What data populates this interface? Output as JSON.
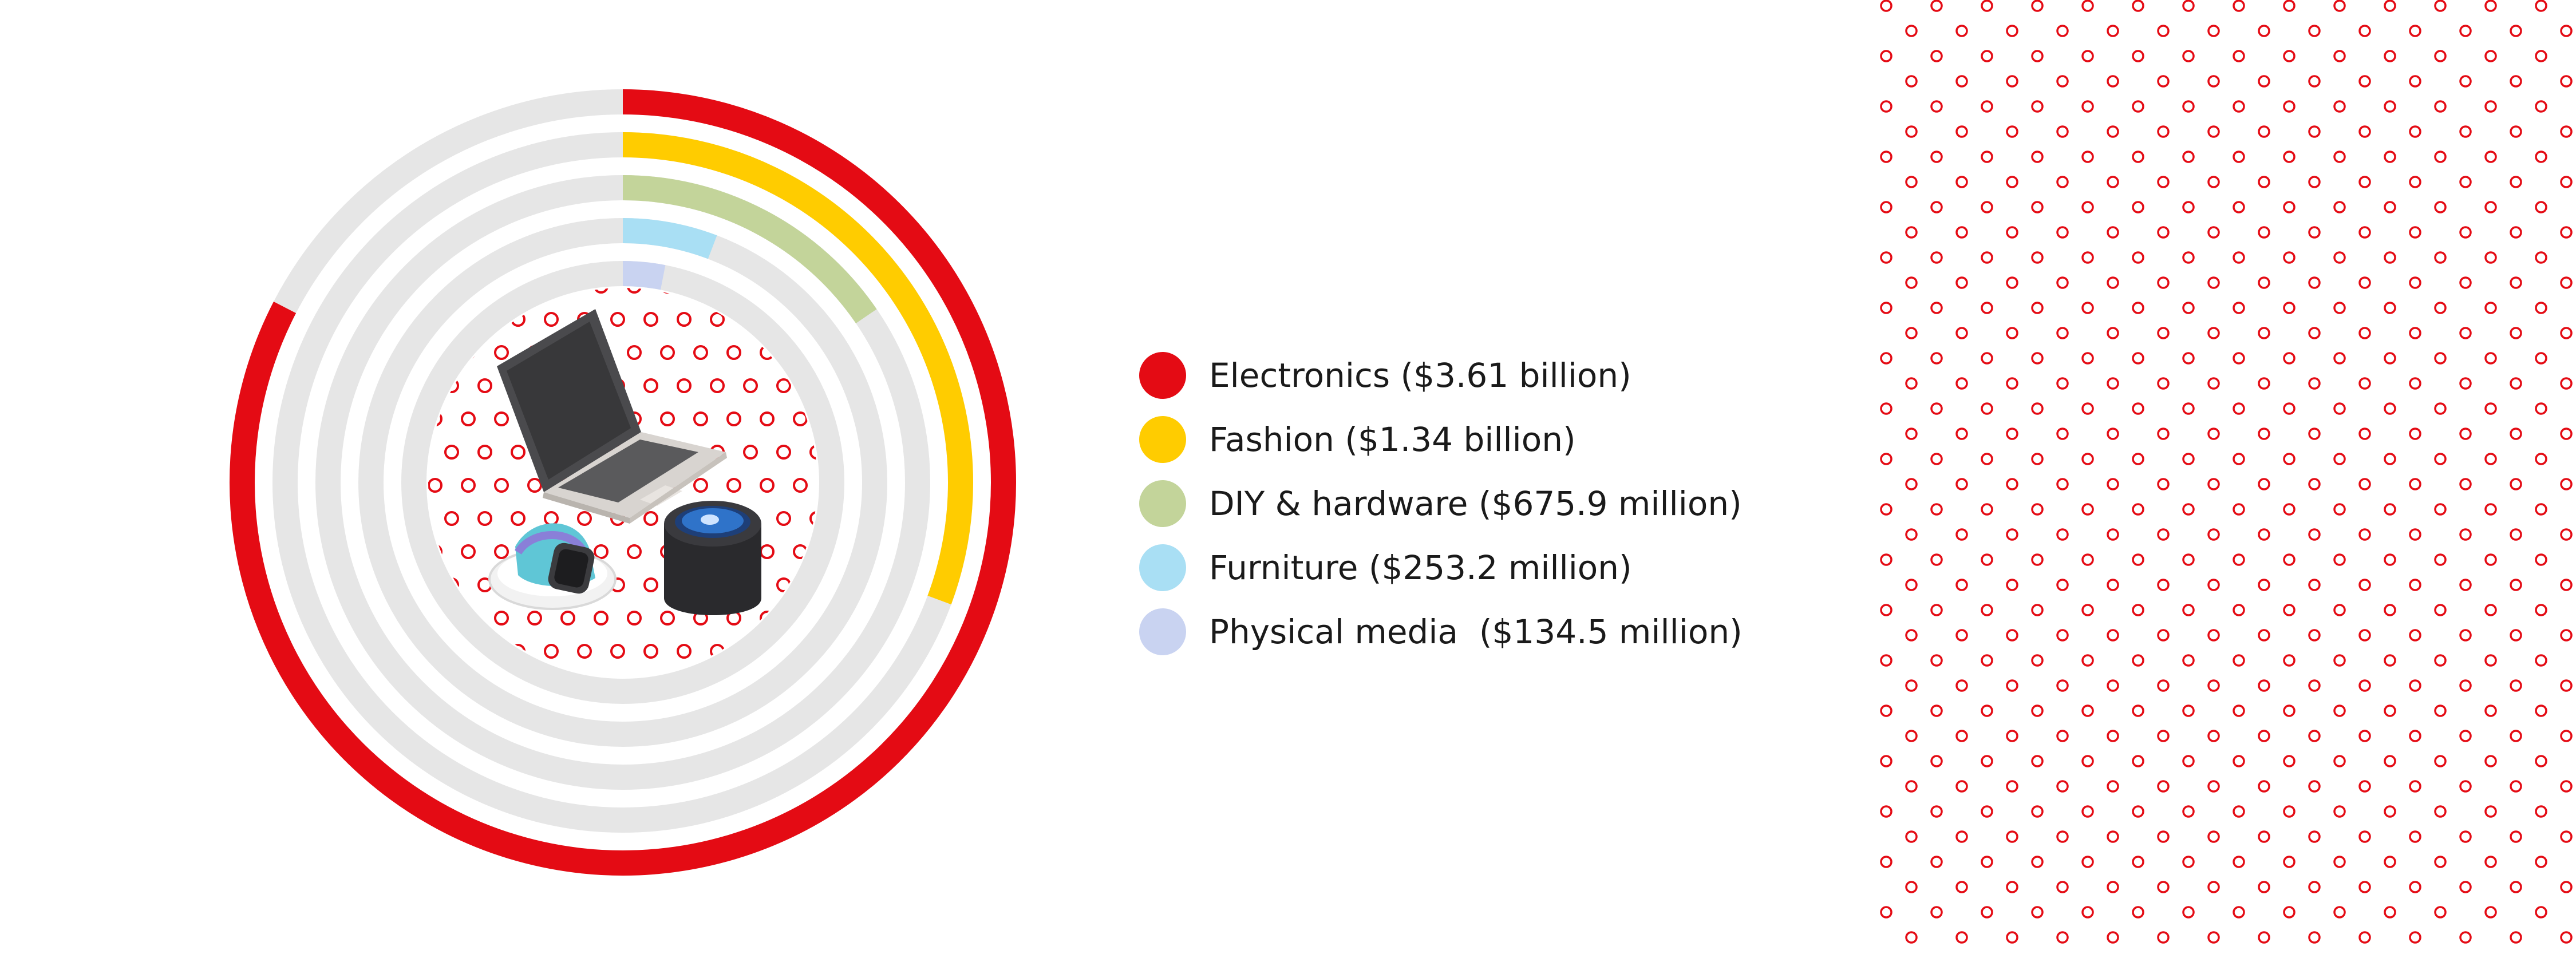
{
  "chart_data": {
    "type": "radial-bar",
    "scale_max": 4.37,
    "unit": "billion USD",
    "series": [
      {
        "label": "Electronics ($3.61 billion)",
        "value": 3.61,
        "color": "#e40b14"
      },
      {
        "label": "Fashion ($1.34 billion)",
        "value": 1.34,
        "color": "#ffcc00"
      },
      {
        "label": "DIY & hardware ($675.9 million)",
        "value": 0.6759,
        "color": "#c3d49a"
      },
      {
        "label": "Furniture ($253.2 million)",
        "value": 0.2532,
        "color": "#a9dff4"
      },
      {
        "label": "Physical media  ($134.5 million)",
        "value": 0.1345,
        "color": "#c9d3f1"
      }
    ],
    "track_color": "#e6e6e6",
    "legend_position": "right"
  },
  "center_illustration": {
    "items": [
      "laptop-icon",
      "smartwatch-icon",
      "smart-speaker-icon"
    ]
  },
  "decoration": {
    "pattern_color": "#e40b14"
  }
}
